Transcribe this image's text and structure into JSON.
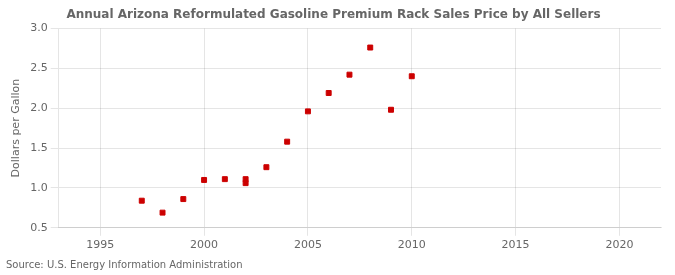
{
  "chart_data": {
    "type": "scatter",
    "title": "Annual Arizona Reformulated Gasoline Premium Rack Sales Price by All Sellers",
    "ylabel": "Dollars per Gallon",
    "source": "Source: U.S. Energy Information Administration",
    "x": [
      1997,
      1998,
      1999,
      2000,
      2001,
      2002,
      2002,
      2003,
      2004,
      2005,
      2006,
      2007,
      2008,
      2009,
      2010
    ],
    "values": [
      0.84,
      0.69,
      0.86,
      1.1,
      1.11,
      1.11,
      1.06,
      1.26,
      1.58,
      1.96,
      2.19,
      2.42,
      2.76,
      1.98,
      2.4
    ],
    "color": "#cc0000",
    "marker": "square",
    "xlim": [
      1993,
      2022
    ],
    "ylim": [
      0.5,
      3.0
    ],
    "xticks": [
      1995,
      2000,
      2005,
      2010,
      2015,
      2020
    ],
    "yticks": [
      0.5,
      {
        "value": 1.0,
        "label": "1.0"
      },
      1.5,
      {
        "value": 2.0,
        "label": "2.0"
      },
      2.5,
      {
        "value": 3.0,
        "label": "3.0"
      }
    ],
    "grid": true
  }
}
